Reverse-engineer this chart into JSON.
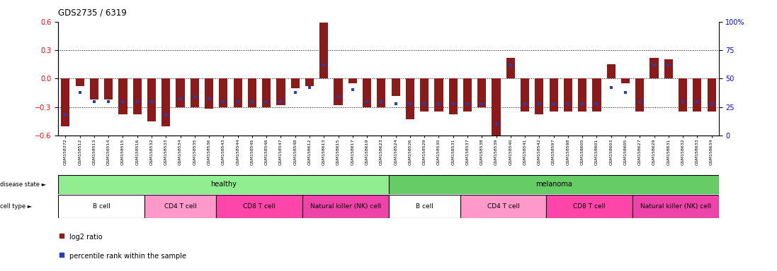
{
  "title": "GDS2735 / 6319",
  "samples": [
    "GSM158372",
    "GSM158512",
    "GSM158513",
    "GSM158514",
    "GSM158515",
    "GSM158516",
    "GSM158532",
    "GSM158533",
    "GSM158534",
    "GSM158535",
    "GSM158536",
    "GSM158543",
    "GSM158544",
    "GSM158545",
    "GSM158546",
    "GSM158547",
    "GSM158548",
    "GSM158612",
    "GSM158613",
    "GSM158615",
    "GSM158617",
    "GSM158619",
    "GSM158623",
    "GSM158524",
    "GSM158526",
    "GSM158529",
    "GSM158530",
    "GSM158531",
    "GSM158537",
    "GSM158538",
    "GSM158539",
    "GSM158540",
    "GSM158541",
    "GSM158542",
    "GSM158597",
    "GSM158598",
    "GSM158600",
    "GSM158601",
    "GSM158603",
    "GSM158605",
    "GSM158627",
    "GSM158629",
    "GSM158631",
    "GSM158632",
    "GSM158633",
    "GSM158634"
  ],
  "log2_ratio": [
    -0.5,
    -0.08,
    -0.22,
    -0.22,
    -0.38,
    -0.38,
    -0.45,
    -0.5,
    -0.3,
    -0.3,
    -0.32,
    -0.3,
    -0.3,
    -0.3,
    -0.3,
    -0.28,
    -0.1,
    -0.08,
    0.59,
    -0.28,
    -0.05,
    -0.3,
    -0.3,
    -0.18,
    -0.43,
    -0.35,
    -0.35,
    -0.38,
    -0.35,
    -0.3,
    -0.6,
    0.22,
    -0.35,
    -0.38,
    -0.35,
    -0.35,
    -0.35,
    -0.35,
    0.15,
    -0.05,
    -0.35,
    0.22,
    0.2,
    -0.35,
    -0.35,
    -0.35
  ],
  "percentile": [
    18,
    38,
    30,
    30,
    30,
    30,
    30,
    18,
    32,
    34,
    32,
    30,
    30,
    30,
    30,
    30,
    38,
    42,
    62,
    34,
    40,
    30,
    30,
    28,
    28,
    28,
    28,
    28,
    28,
    28,
    10,
    62,
    28,
    28,
    28,
    28,
    28,
    28,
    42,
    38,
    30,
    62,
    62,
    30,
    30,
    28
  ],
  "disease_state": [
    "healthy",
    "healthy",
    "healthy",
    "healthy",
    "healthy",
    "healthy",
    "healthy",
    "healthy",
    "healthy",
    "healthy",
    "healthy",
    "healthy",
    "healthy",
    "healthy",
    "healthy",
    "healthy",
    "healthy",
    "healthy",
    "healthy",
    "healthy",
    "healthy",
    "healthy",
    "healthy",
    "melanoma",
    "melanoma",
    "melanoma",
    "melanoma",
    "melanoma",
    "melanoma",
    "melanoma",
    "melanoma",
    "melanoma",
    "melanoma",
    "melanoma",
    "melanoma",
    "melanoma",
    "melanoma",
    "melanoma",
    "melanoma",
    "melanoma",
    "melanoma",
    "melanoma",
    "melanoma",
    "melanoma",
    "melanoma",
    "melanoma"
  ],
  "cell_type": [
    "B cell",
    "B cell",
    "B cell",
    "B cell",
    "B cell",
    "B cell",
    "CD4 T cell",
    "CD4 T cell",
    "CD4 T cell",
    "CD4 T cell",
    "CD4 T cell",
    "CD8 T cell",
    "CD8 T cell",
    "CD8 T cell",
    "CD8 T cell",
    "CD8 T cell",
    "CD8 T cell",
    "Natural killer (NK) cell",
    "Natural killer (NK) cell",
    "Natural killer (NK) cell",
    "Natural killer (NK) cell",
    "Natural killer (NK) cell",
    "Natural killer (NK) cell",
    "B cell",
    "B cell",
    "B cell",
    "B cell",
    "B cell",
    "CD4 T cell",
    "CD4 T cell",
    "CD4 T cell",
    "CD4 T cell",
    "CD4 T cell",
    "CD4 T cell",
    "CD8 T cell",
    "CD8 T cell",
    "CD8 T cell",
    "CD8 T cell",
    "CD8 T cell",
    "CD8 T cell",
    "Natural killer (NK) cell",
    "Natural killer (NK) cell",
    "Natural killer (NK) cell",
    "Natural killer (NK) cell",
    "Natural killer (NK) cell",
    "Natural killer (NK) cell"
  ],
  "bar_color": "#8B1A1A",
  "blue_color": "#1E3EBF",
  "ylim": [
    -0.6,
    0.6
  ],
  "yticks_left": [
    -0.6,
    -0.3,
    0.0,
    0.3,
    0.6
  ],
  "yticks_right": [
    0,
    25,
    50,
    75,
    100
  ],
  "disease_colors": {
    "healthy": "#90EE90",
    "melanoma": "#66CC66"
  },
  "cell_colors": {
    "B cell": "#FFFFFF",
    "CD4 T cell": "#FF99CC",
    "CD8 T cell": "#FF44AA",
    "Natural killer (NK) cell": "#EE44AA"
  },
  "bar_width": 0.6,
  "hline_values": [
    -0.3,
    0.0,
    0.3
  ],
  "bg_color": "#F0F0F0"
}
